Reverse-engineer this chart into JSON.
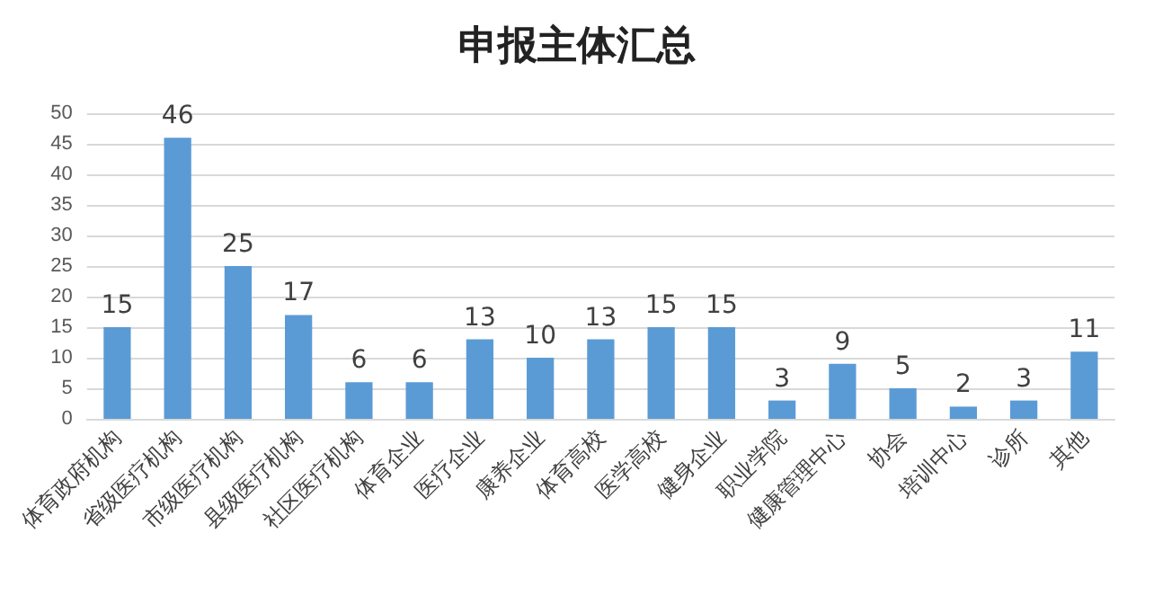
{
  "chart_data": {
    "type": "bar",
    "title": "申报主体汇总",
    "categories": [
      "体育政府机构",
      "省级医疗机构",
      "市级医疗机构",
      "县级医疗机构",
      "社区医疗机构",
      "体育企业",
      "医疗企业",
      "康养企业",
      "体育高校",
      "医学高校",
      "健身企业",
      "职业学院",
      "健康管理中心",
      "协会",
      "培训中心",
      "诊所",
      "其他"
    ],
    "values": [
      15,
      46,
      25,
      17,
      6,
      6,
      13,
      10,
      13,
      15,
      15,
      3,
      9,
      5,
      2,
      3,
      11
    ],
    "color": "#5b9bd5",
    "ylim": [
      0,
      50
    ],
    "yticks": [
      0,
      5,
      10,
      15,
      20,
      25,
      30,
      35,
      40,
      45,
      50
    ],
    "grid": "y",
    "data_labels": true
  }
}
